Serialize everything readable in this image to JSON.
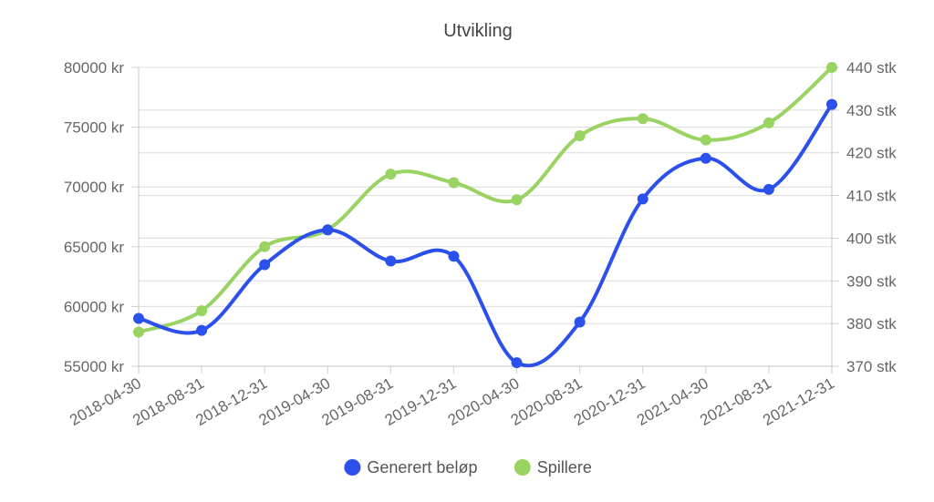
{
  "chart_data": {
    "type": "line",
    "title": "Utvikling",
    "categories": [
      "2018-04-30",
      "2018-08-31",
      "2018-12-31",
      "2019-04-30",
      "2019-08-31",
      "2019-12-31",
      "2020-04-30",
      "2020-08-31",
      "2020-12-31",
      "2021-04-30",
      "2021-08-31",
      "2021-12-31"
    ],
    "series": [
      {
        "name": "Generert beløp",
        "axis": "left",
        "color": "#2b50ec",
        "values": [
          59000,
          58000,
          63500,
          66400,
          63800,
          64200,
          55300,
          58700,
          69000,
          72400,
          69800,
          76900
        ]
      },
      {
        "name": "Spillere",
        "axis": "right",
        "color": "#99d362",
        "values": [
          378,
          383,
          398,
          402,
          415,
          413,
          409,
          424,
          428,
          423,
          427,
          440
        ]
      }
    ],
    "y_left": {
      "min": 55000,
      "max": 80000,
      "ticks": [
        "55000 kr",
        "60000 kr",
        "65000 kr",
        "70000 kr",
        "75000 kr",
        "80000 kr"
      ]
    },
    "y_right": {
      "min": 370,
      "max": 440,
      "ticks": [
        "370 stk",
        "380 stk",
        "390 stk",
        "400 stk",
        "410 stk",
        "420 stk",
        "430 stk",
        "440 stk"
      ]
    },
    "grid": true,
    "legend_position": "bottom"
  }
}
